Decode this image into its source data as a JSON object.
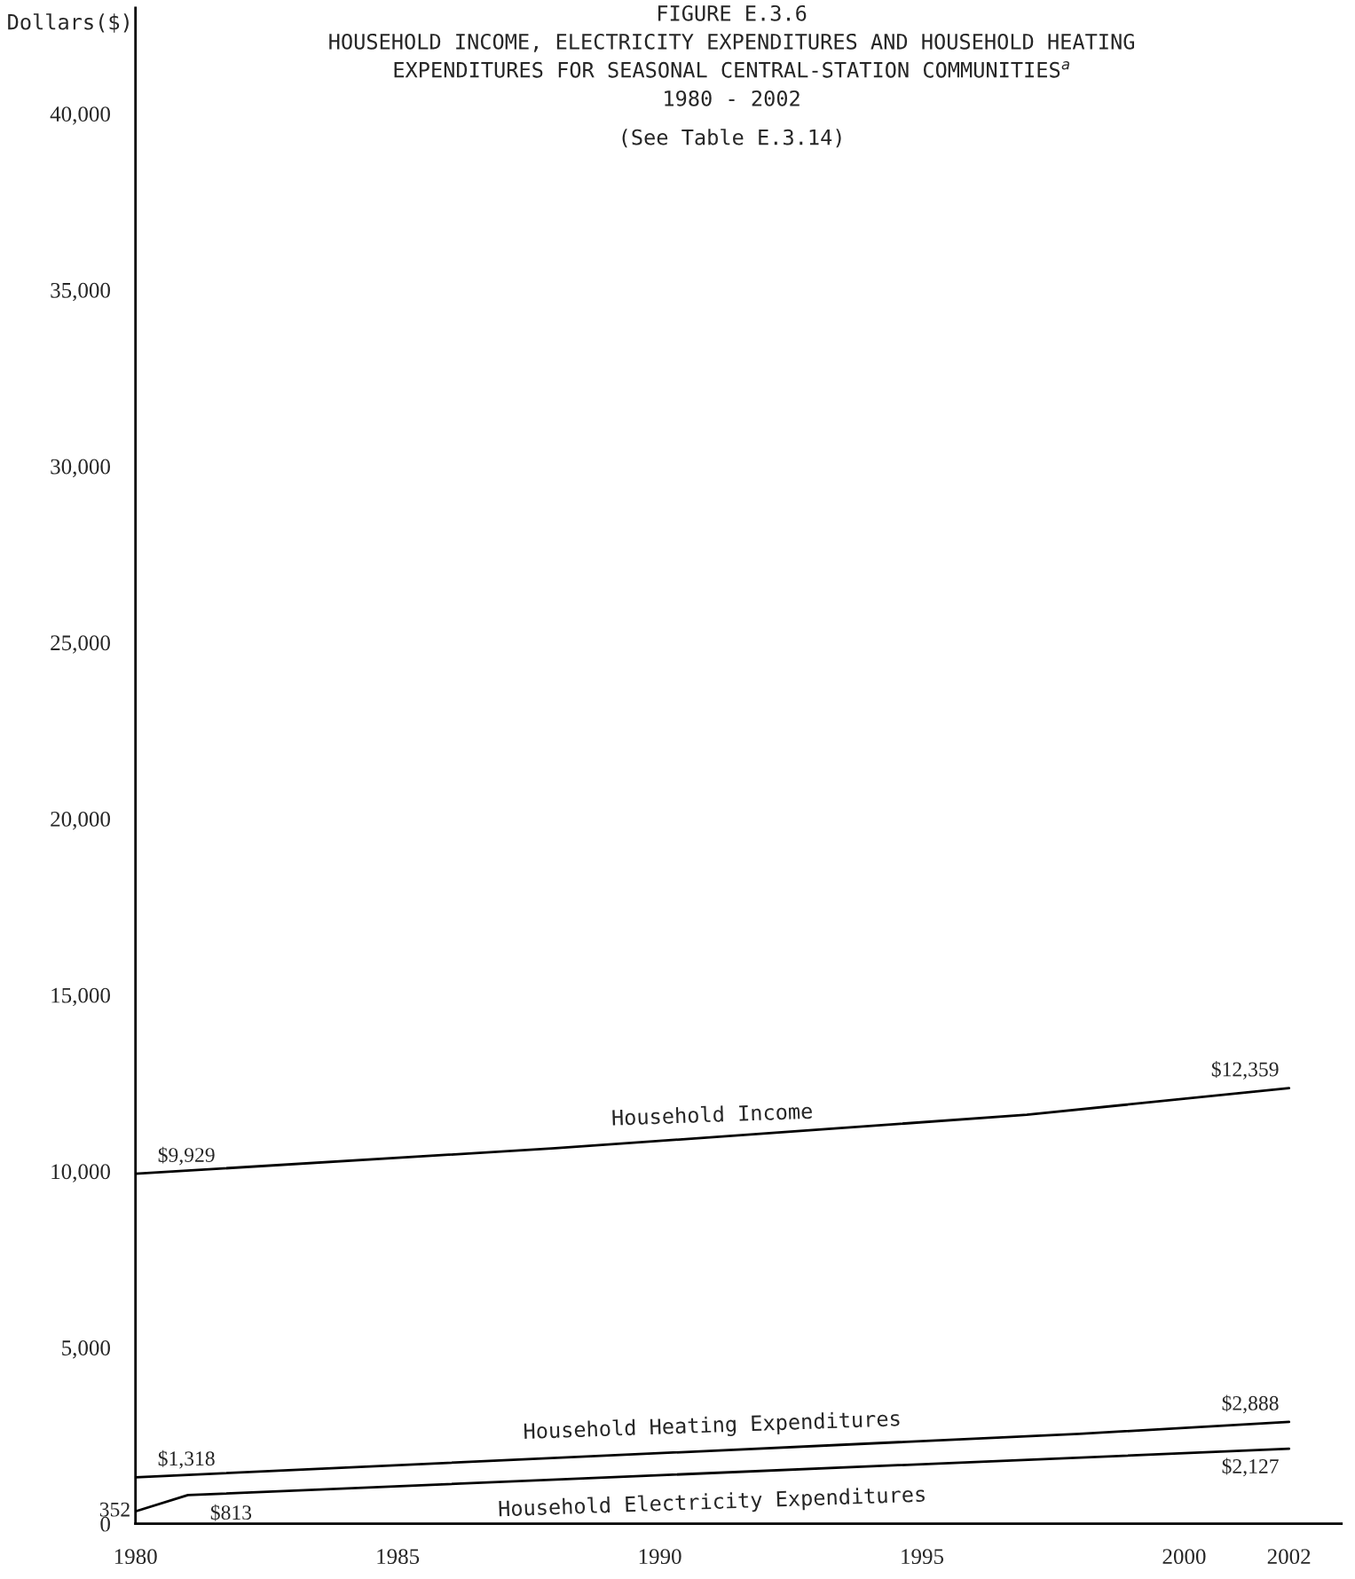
{
  "chart_data": {
    "type": "line",
    "title": "FIGURE E.3.6\nHOUSEHOLD INCOME, ELECTRICITY EXPENDITURES AND HOUSEHOLD HEATING\nEXPENDITURES FOR SEASONAL CENTRAL-STATION COMMUNITIES$^{a}$\n1980 - 2002",
    "subtitle": "(See Table E.3.14)",
    "ylabel": "Dollars($)",
    "series": [
      {
        "name": "Household Income",
        "color": "#000000",
        "x": [
          1980,
          1988,
          1997,
          2002
        ],
        "values": [
          9929,
          10650,
          11600,
          12359
        ],
        "value_labels": [
          "$9,929",
          null,
          null,
          "$12,359"
        ]
      },
      {
        "name": "Household Heating Expenditures",
        "color": "#000000",
        "x": [
          1980,
          1998,
          2002
        ],
        "values": [
          1318,
          2550,
          2888
        ],
        "value_labels": [
          "$1,318",
          null,
          "$2,888"
        ]
      },
      {
        "name": "Household Electricity Expenditures",
        "color": "#000000",
        "x": [
          1980,
          1981,
          2002
        ],
        "values": [
          352,
          813,
          2127
        ],
        "value_labels": [
          "352",
          "$813",
          "$2,127"
        ]
      }
    ],
    "xlim": [
      1980,
      2003
    ],
    "xticks": [
      1980,
      1985,
      1990,
      1995,
      2000,
      2002
    ],
    "ylim": [
      0,
      43000
    ],
    "yticks": [
      {
        "value": 0,
        "label": "0"
      },
      {
        "value": 5000,
        "label": "5,000"
      },
      {
        "value": 10000,
        "label": "10,000"
      },
      {
        "value": 15000,
        "label": "15,000"
      },
      {
        "value": 20000,
        "label": "20,000"
      },
      {
        "value": 25000,
        "label": "25,000"
      },
      {
        "value": 30000,
        "label": "30,000"
      },
      {
        "value": 35000,
        "label": "35,000"
      },
      {
        "value": 40000,
        "label": "40,000"
      }
    ],
    "grid": false,
    "legend": false,
    "marker": "none",
    "line_style": "solid"
  }
}
